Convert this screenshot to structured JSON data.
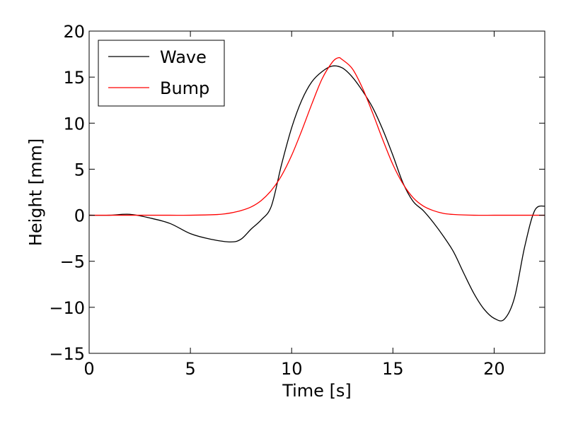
{
  "chart_data": {
    "type": "line",
    "title": "",
    "xlabel": "Time [s]",
    "ylabel": "Height [mm]",
    "xlim": [
      0,
      22.5
    ],
    "ylim": [
      -15,
      20
    ],
    "xticks": [
      0,
      5,
      10,
      15,
      20
    ],
    "yticks": [
      -15,
      -10,
      -5,
      0,
      5,
      10,
      15,
      20
    ],
    "xtick_labels": [
      "0",
      "5",
      "10",
      "15",
      "20"
    ],
    "ytick_labels": [
      "−15",
      "−10",
      "−5",
      "0",
      "5",
      "10",
      "15",
      "20"
    ],
    "grid": false,
    "legend_position": "top-left",
    "series": [
      {
        "name": "Wave",
        "color": "#000000",
        "x": [
          0,
          1,
          2,
          3,
          4,
          5,
          6,
          7,
          7.5,
          8,
          8.5,
          9,
          9.5,
          10,
          10.5,
          11,
          11.5,
          12,
          12.5,
          13,
          13.5,
          14,
          14.5,
          15,
          15.5,
          16,
          16.5,
          17,
          17.5,
          18,
          18.5,
          19,
          19.5,
          20,
          20.5,
          21,
          21.5,
          22,
          22.5
        ],
        "y": [
          0,
          0,
          0.1,
          -0.3,
          -0.9,
          -2.0,
          -2.6,
          -2.9,
          -2.6,
          -1.5,
          -0.5,
          1.0,
          5.5,
          9.5,
          12.5,
          14.5,
          15.6,
          16.2,
          16.0,
          15.0,
          13.5,
          11.7,
          9.3,
          6.5,
          3.5,
          1.5,
          0.5,
          -0.8,
          -2.3,
          -4.0,
          -6.3,
          -8.5,
          -10.2,
          -11.2,
          -11.3,
          -9.0,
          -3.5,
          0.5,
          1.0
        ]
      },
      {
        "name": "Bump",
        "color": "#ff0000",
        "x": [
          0,
          1,
          2,
          3,
          4,
          5,
          6,
          6.5,
          7,
          7.5,
          8,
          8.5,
          9,
          9.5,
          10,
          10.5,
          11,
          11.5,
          12,
          12.3,
          12.5,
          13,
          13.5,
          14,
          14.5,
          15,
          15.5,
          16,
          16.5,
          17,
          17.5,
          18,
          19,
          20,
          21,
          22,
          22.5
        ],
        "y": [
          0,
          0,
          0,
          0,
          0,
          0,
          0.05,
          0.1,
          0.25,
          0.5,
          0.9,
          1.6,
          2.7,
          4.3,
          6.5,
          9.2,
          12.1,
          14.8,
          16.6,
          17.1,
          16.9,
          15.9,
          13.8,
          11.1,
          8.2,
          5.5,
          3.4,
          1.9,
          1.0,
          0.5,
          0.2,
          0.08,
          0,
          0,
          0,
          0,
          0
        ]
      }
    ]
  }
}
